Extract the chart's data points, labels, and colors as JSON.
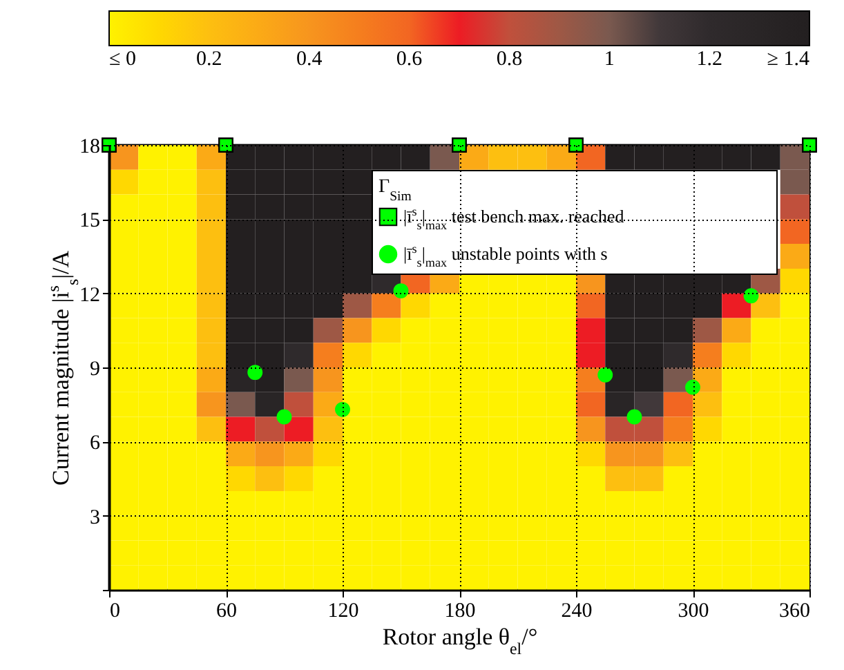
{
  "chart_data": {
    "type": "heatmap",
    "xlabel": "Rotor angle θ$_{el}$/°",
    "ylabel": "Current magnitude |i$^{s}$$_{s}$|/A",
    "legend_title": "Γ$_{Sim}$",
    "legend": "top right",
    "grid": true,
    "xlim": [
      0,
      360
    ],
    "xticks": [
      0,
      60,
      120,
      180,
      240,
      300,
      360
    ],
    "ylim": [
      0,
      18
    ],
    "yticks": [
      {
        "value": 0,
        "label": null
      },
      3,
      6,
      9,
      12,
      15,
      18
    ],
    "clim": [
      0,
      1.4
    ],
    "cticks": [
      {
        "value": 0,
        "label": "≤ 0"
      },
      0.2,
      0.4,
      0.6,
      0.8,
      1,
      1.2,
      {
        "value": 1.4,
        "label": "≥ 1.4"
      }
    ],
    "cells": [
      [
        0.4,
        0,
        0,
        0.3,
        1.4,
        1.4,
        1.4,
        1.4,
        1.4,
        1.4,
        1.4,
        1.0,
        0.3,
        0.2,
        0.2,
        0.3,
        0.6,
        1.4,
        1.4,
        1.4,
        1.4,
        1.4,
        1.4,
        1.0
      ],
      [
        0.1,
        0,
        0,
        0.2,
        1.4,
        1.4,
        1.4,
        1.4,
        1.4,
        null,
        null,
        null,
        null,
        null,
        null,
        null,
        null,
        null,
        null,
        null,
        null,
        null,
        null,
        1.0
      ],
      [
        0,
        0,
        0,
        0.2,
        1.4,
        1.4,
        1.4,
        1.4,
        1.4,
        null,
        null,
        null,
        null,
        null,
        null,
        null,
        null,
        null,
        null,
        null,
        null,
        null,
        null,
        0.8
      ],
      [
        0,
        0,
        0,
        0.2,
        1.4,
        1.4,
        1.4,
        1.4,
        1.4,
        null,
        null,
        null,
        null,
        null,
        null,
        null,
        null,
        null,
        null,
        null,
        null,
        null,
        null,
        0.6
      ],
      [
        0,
        0,
        0,
        0.2,
        1.4,
        1.4,
        1.4,
        1.4,
        1.4,
        null,
        null,
        null,
        null,
        null,
        null,
        null,
        null,
        null,
        null,
        null,
        null,
        null,
        null,
        0.3
      ],
      [
        0,
        0,
        0,
        0.2,
        1.4,
        1.4,
        1.4,
        1.4,
        1.4,
        1.2,
        0.6,
        0.3,
        0,
        0,
        0,
        0,
        0.4,
        1.4,
        1.4,
        1.4,
        1.4,
        1.4,
        0.9,
        0.1
      ],
      [
        0,
        0,
        0,
        0.2,
        1.4,
        1.4,
        1.4,
        1.4,
        0.9,
        0.5,
        0.1,
        0,
        0,
        0,
        0,
        0,
        0.6,
        1.4,
        1.4,
        1.4,
        1.4,
        0.7,
        0.2,
        0
      ],
      [
        0,
        0,
        0,
        0.2,
        1.4,
        1.4,
        1.4,
        0.9,
        0.4,
        0.1,
        0,
        0,
        0,
        0,
        0,
        0,
        0.7,
        1.4,
        1.4,
        1.4,
        0.9,
        0.3,
        0,
        0
      ],
      [
        0,
        0,
        0,
        0.2,
        1.4,
        1.4,
        1.2,
        0.5,
        0.1,
        0,
        0,
        0,
        0,
        0,
        0,
        0,
        0.7,
        1.4,
        1.4,
        1.2,
        0.5,
        0.1,
        0,
        0
      ],
      [
        0,
        0,
        0,
        0.3,
        1.3,
        1.4,
        1.0,
        0.4,
        0,
        0,
        0,
        0,
        0,
        0,
        0,
        0,
        0.5,
        1.4,
        1.4,
        1.0,
        0.3,
        0,
        0,
        0
      ],
      [
        0,
        0,
        0,
        0.4,
        1.0,
        1.3,
        0.8,
        0.3,
        0,
        0,
        0,
        0,
        0,
        0,
        0,
        0,
        0.6,
        1.3,
        1.1,
        0.6,
        0.2,
        0,
        0,
        0
      ],
      [
        0,
        0,
        0,
        0.2,
        0.7,
        0.8,
        0.7,
        0.2,
        0,
        0,
        0,
        0,
        0,
        0,
        0,
        0,
        0.4,
        0.8,
        0.8,
        0.5,
        0.1,
        0,
        0,
        0
      ],
      [
        0,
        0,
        0,
        0,
        0.3,
        0.4,
        0.3,
        0.1,
        0,
        0,
        0,
        0,
        0,
        0,
        0,
        0,
        0.1,
        0.4,
        0.4,
        0.2,
        0,
        0,
        0,
        0
      ],
      [
        0,
        0,
        0,
        0,
        0.1,
        0.2,
        0.1,
        0,
        0,
        0,
        0,
        0,
        0,
        0,
        0,
        0,
        0,
        0.2,
        0.2,
        0,
        0,
        0,
        0,
        0
      ],
      [
        0,
        0,
        0,
        0,
        0,
        0,
        0,
        0,
        0,
        0,
        0,
        0,
        0,
        0,
        0,
        0,
        0,
        0,
        0,
        0,
        0,
        0,
        0,
        0
      ],
      [
        0,
        0,
        0,
        0,
        0,
        0,
        0,
        0,
        0,
        0,
        0,
        0,
        0,
        0,
        0,
        0,
        0,
        0,
        0,
        0,
        0,
        0,
        0,
        0
      ],
      [
        0,
        0,
        0,
        0,
        0,
        0,
        0,
        0,
        0,
        0,
        0,
        0,
        0,
        0,
        0,
        0,
        0,
        0,
        0,
        0,
        0,
        0,
        0,
        0
      ],
      [
        0,
        0,
        0,
        0,
        0,
        0,
        0,
        0,
        0,
        0,
        0,
        0,
        0,
        0,
        0,
        0,
        0,
        0,
        0,
        0,
        0,
        0,
        0,
        0
      ]
    ],
    "series": [
      {
        "type": "scatter",
        "name": "|ī$^{s}$$_{s}$|$_{max}$ test bench max. reached",
        "color": "#00ff00",
        "marker": "square",
        "x": [
          0,
          60,
          180,
          240,
          360
        ],
        "values": [
          18,
          18,
          18,
          18,
          18
        ]
      },
      {
        "type": "scatter",
        "name": "|ī$^{s}$$_{s}$|$_{max}$ unstable points with s",
        "color": "#00ff00",
        "marker": "circle",
        "x": [
          75,
          90,
          120,
          150,
          255,
          270,
          300,
          330
        ],
        "values": [
          8.8,
          7.0,
          7.3,
          12.1,
          8.7,
          7.0,
          8.2,
          11.9
        ]
      }
    ]
  }
}
